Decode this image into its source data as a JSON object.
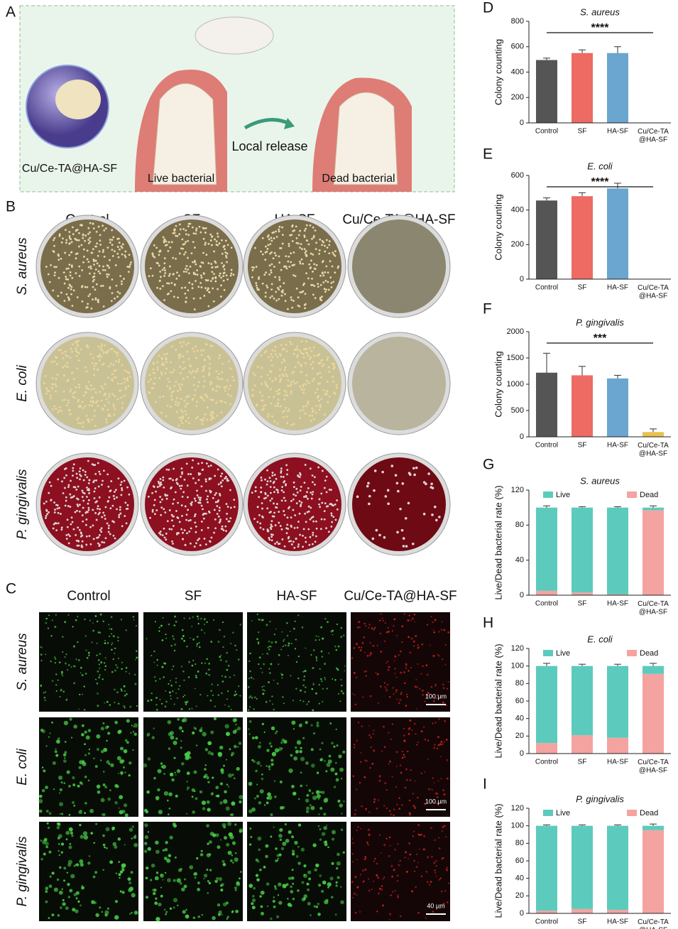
{
  "figure": {
    "panel_labels": [
      "A",
      "B",
      "C",
      "D",
      "E",
      "F",
      "G",
      "H",
      "I"
    ],
    "panel_a": {
      "material": "Cu/Ce-TA@HA-SF",
      "left_caption": "Live bacterial",
      "arrow_caption": "Local release",
      "right_caption": "Dead bacterial"
    },
    "panel_b": {
      "columns": [
        "Control",
        "SF",
        "HA-SF",
        "Cu/Ce-TA@HA-SF"
      ],
      "rows": [
        "S. aureus",
        "E. coli",
        "P. gingivalis"
      ]
    },
    "panel_c": {
      "columns": [
        "Control",
        "SF",
        "HA-SF",
        "Cu/Ce-TA@HA-SF"
      ],
      "rows": [
        "S. aureus",
        "E. coli",
        "P. gingivalis"
      ],
      "scale_bars": [
        "100 μm",
        "100 μm",
        "40 μm"
      ]
    }
  },
  "chart_data": [
    {
      "type": "bar",
      "title": "S. aureus",
      "y_label": "Colony counting",
      "categories": [
        "Control",
        "SF",
        "HA-SF",
        "Cu/Ce-TA\n@HA-SF"
      ],
      "values": [
        495,
        550,
        550,
        0
      ],
      "errors": [
        15,
        25,
        50,
        0
      ],
      "colors": [
        "#555555",
        "#ee6b63",
        "#6aa6d0",
        "#e8c24d"
      ],
      "significance": "****",
      "ylim": [
        0,
        800
      ],
      "yticks": [
        0,
        200,
        400,
        600,
        800
      ]
    },
    {
      "type": "bar",
      "title": "E. coli",
      "y_label": "Colony counting",
      "categories": [
        "Control",
        "SF",
        "HA-SF",
        "Cu/Ce-TA\n@HA-SF"
      ],
      "values": [
        455,
        480,
        525,
        0
      ],
      "errors": [
        15,
        20,
        30,
        0
      ],
      "colors": [
        "#555555",
        "#ee6b63",
        "#6aa6d0",
        "#e8c24d"
      ],
      "significance": "****",
      "ylim": [
        0,
        600
      ],
      "yticks": [
        0,
        200,
        400,
        600
      ]
    },
    {
      "type": "bar",
      "title": "P. gingivalis",
      "y_label": "Colony counting",
      "categories": [
        "Control",
        "SF",
        "HA-SF",
        "Cu/Ce-TA\n@HA-SF"
      ],
      "values": [
        1220,
        1170,
        1110,
        90
      ],
      "errors": [
        370,
        170,
        60,
        60
      ],
      "colors": [
        "#555555",
        "#ee6b63",
        "#6aa6d0",
        "#e8c24d"
      ],
      "significance": "***",
      "ylim": [
        0,
        2000
      ],
      "yticks": [
        0,
        500,
        1000,
        1500,
        2000
      ]
    },
    {
      "type": "stacked_bar",
      "title": "S. aureus",
      "y_label": "Live/Dead bacterial rate (%)",
      "categories": [
        "Control",
        "SF",
        "HA-SF",
        "Cu/Ce-TA\n@HA-SF"
      ],
      "series": [
        {
          "name": "Live",
          "color": "#5ccbbd",
          "values": [
            95,
            97,
            99,
            3
          ],
          "errors": [
            2,
            1,
            1,
            2
          ]
        },
        {
          "name": "Dead",
          "color": "#f4a3a0",
          "values": [
            5,
            3,
            1,
            97
          ],
          "errors": [
            3,
            1,
            1,
            2
          ]
        }
      ],
      "ylim": [
        0,
        120
      ],
      "yticks": [
        0,
        40,
        80,
        120
      ]
    },
    {
      "type": "stacked_bar",
      "title": "E. coli",
      "y_label": "Live/Dead bacterial rate (%)",
      "categories": [
        "Control",
        "SF",
        "HA-SF",
        "Cu/Ce-TA\n@HA-SF"
      ],
      "series": [
        {
          "name": "Live",
          "color": "#5ccbbd",
          "values": [
            88,
            79,
            82,
            9
          ],
          "errors": [
            3,
            2,
            2,
            3
          ]
        },
        {
          "name": "Dead",
          "color": "#f4a3a0",
          "values": [
            12,
            21,
            18,
            91
          ],
          "errors": [
            4,
            2,
            2,
            4
          ]
        }
      ],
      "ylim": [
        0,
        120
      ],
      "yticks": [
        0,
        20,
        40,
        60,
        80,
        100,
        120
      ]
    },
    {
      "type": "stacked_bar",
      "title": "P. gingivalis",
      "y_label": "Live/Dead bacterial rate (%)",
      "categories": [
        "Control",
        "SF",
        "HA-SF",
        "Cu/Ce-TA\n@HA-SF"
      ],
      "series": [
        {
          "name": "Live",
          "color": "#5ccbbd",
          "values": [
            97,
            95,
            96,
            5
          ],
          "errors": [
            1,
            1,
            1,
            2
          ]
        },
        {
          "name": "Dead",
          "color": "#f4a3a0",
          "values": [
            3,
            5,
            4,
            95
          ],
          "errors": [
            1,
            2,
            2,
            3
          ]
        }
      ],
      "ylim": [
        0,
        120
      ],
      "yticks": [
        0,
        20,
        40,
        60,
        80,
        100,
        120
      ]
    }
  ]
}
